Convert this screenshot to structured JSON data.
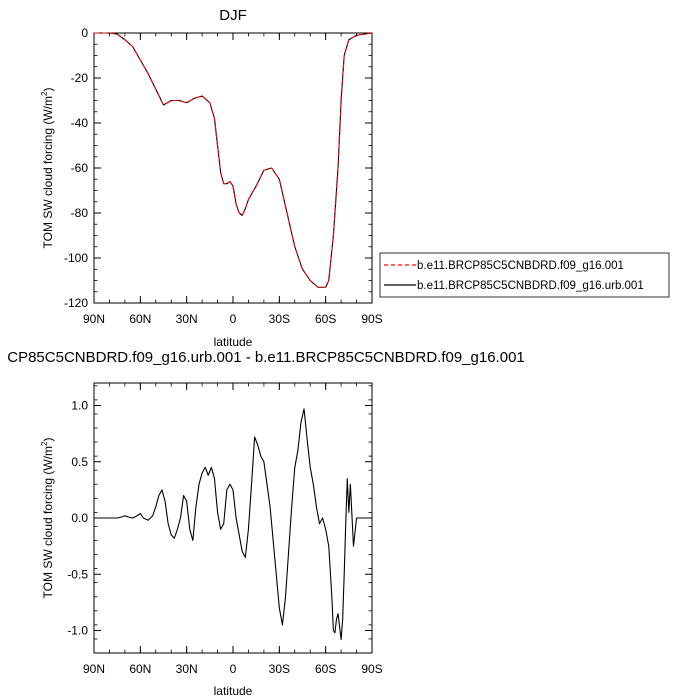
{
  "chart_data": [
    {
      "type": "line",
      "title": "DJF",
      "xlabel": "latitude",
      "ylabel": "TOM SW cloud forcing (W/m",
      "ylabel_sup": "2",
      "ylabel_close": ")",
      "xlim": [
        90,
        -90
      ],
      "ylim": [
        -120,
        0
      ],
      "xticks": [
        90,
        60,
        30,
        0,
        -30,
        -60,
        -90
      ],
      "xticklabels": [
        "90N",
        "60N",
        "30N",
        "0",
        "30S",
        "60S",
        "90S"
      ],
      "yticks": [
        0,
        -20,
        -40,
        -60,
        -80,
        -100,
        -120
      ],
      "yticklabels": [
        "0",
        "-20",
        "-40",
        "-60",
        "-80",
        "-100",
        "-120"
      ],
      "grid": false,
      "legend_placement": "right",
      "x": [
        90,
        80,
        75,
        70,
        65,
        60,
        55,
        50,
        45,
        40,
        35,
        30,
        25,
        20,
        15,
        12,
        10,
        8,
        6,
        4,
        2,
        0,
        -2,
        -4,
        -6,
        -8,
        -10,
        -15,
        -20,
        -25,
        -30,
        -35,
        -40,
        -45,
        -50,
        -55,
        -60,
        -62,
        -65,
        -68,
        -70,
        -72,
        -75,
        -80,
        -85,
        -90
      ],
      "series": [
        {
          "name": "b.e11.BRCP85C5CNBDRD.f09_g16.001",
          "color": "#ff0000",
          "dash": "dashed",
          "values": [
            0,
            0,
            -0.5,
            -3,
            -6,
            -12,
            -18,
            -25,
            -32,
            -30,
            -30,
            -31,
            -29,
            -28,
            -31,
            -38,
            -50,
            -62,
            -67,
            -67,
            -66,
            -68,
            -76,
            -80,
            -81,
            -78,
            -74,
            -68,
            -61,
            -60,
            -65,
            -80,
            -95,
            -105,
            -110,
            -113,
            -113,
            -110,
            -90,
            -60,
            -30,
            -10,
            -3,
            -1,
            -0.5,
            0
          ]
        },
        {
          "name": "b.e11.BRCP85C5CNBDRD.f09_g16.urb.001",
          "color": "#000000",
          "dash": "solid",
          "values": [
            0,
            0,
            -0.5,
            -3,
            -6,
            -12,
            -18,
            -25,
            -32,
            -30,
            -30,
            -31,
            -29,
            -28,
            -31,
            -38,
            -50,
            -62,
            -67,
            -67,
            -66,
            -68,
            -76,
            -80,
            -81,
            -78,
            -74,
            -68,
            -61,
            -60,
            -65,
            -80,
            -95,
            -105,
            -110,
            -113,
            -113,
            -110,
            -90,
            -60,
            -30,
            -10,
            -3,
            -1,
            -0.5,
            0
          ]
        }
      ]
    },
    {
      "type": "line",
      "title": "CP85C5CNBDRD.f09_g16.urb.001 - b.e11.BRCP85C5CNBDRD.f09_g16.001",
      "xlabel": "latitude",
      "ylabel": "TOM SW cloud forcing (W/m",
      "ylabel_sup": "2",
      "ylabel_close": ")",
      "xlim": [
        90,
        -90
      ],
      "ylim": [
        -1.2,
        1.2
      ],
      "xticks": [
        90,
        60,
        30,
        0,
        -30,
        -60,
        -90
      ],
      "xticklabels": [
        "90N",
        "60N",
        "30N",
        "0",
        "30S",
        "60S",
        "90S"
      ],
      "yticks": [
        1.0,
        0.5,
        0.0,
        -0.5,
        -1.0
      ],
      "yticklabels": [
        "1.0",
        "0.5",
        "0.0",
        "-0.5",
        "-1.0"
      ],
      "grid": false,
      "x": [
        90,
        80,
        75,
        72,
        70,
        68,
        65,
        62,
        60,
        58,
        55,
        52,
        50,
        48,
        46,
        44,
        42,
        40,
        38,
        36,
        34,
        32,
        30,
        28,
        26,
        24,
        22,
        20,
        18,
        16,
        14,
        12,
        10,
        8,
        6,
        4,
        2,
        0,
        -2,
        -4,
        -6,
        -8,
        -10,
        -12,
        -14,
        -16,
        -18,
        -20,
        -22,
        -24,
        -26,
        -28,
        -30,
        -32,
        -34,
        -36,
        -38,
        -40,
        -42,
        -44,
        -46,
        -48,
        -50,
        -52,
        -54,
        -56,
        -58,
        -60,
        -62,
        -64,
        -65,
        -66,
        -67,
        -68,
        -70,
        -71,
        -72,
        -73,
        -74,
        -75,
        -76,
        -78,
        -80,
        -85,
        -90
      ],
      "series": [
        {
          "color": "#000000",
          "dash": "solid",
          "values": [
            0,
            0,
            0,
            0.01,
            0.02,
            0.01,
            0,
            0.02,
            0.04,
            0,
            -0.02,
            0.02,
            0.1,
            0.2,
            0.25,
            0.15,
            -0.05,
            -0.15,
            -0.18,
            -0.1,
            0,
            0.2,
            0.15,
            -0.1,
            -0.2,
            0.1,
            0.3,
            0.4,
            0.45,
            0.38,
            0.45,
            0.35,
            0.05,
            -0.1,
            -0.05,
            0.25,
            0.3,
            0.25,
            0,
            -0.15,
            -0.3,
            -0.35,
            -0.1,
            0.3,
            0.72,
            0.65,
            0.55,
            0.5,
            0.3,
            0.1,
            -0.2,
            -0.5,
            -0.8,
            -0.95,
            -0.7,
            -0.3,
            0.1,
            0.45,
            0.6,
            0.85,
            0.97,
            0.7,
            0.45,
            0.3,
            0.1,
            -0.05,
            0,
            -0.1,
            -0.25,
            -0.7,
            -1.0,
            -1.02,
            -0.9,
            -0.85,
            -1.08,
            -0.9,
            -0.5,
            -0.05,
            0.35,
            0.05,
            0.3,
            -0.25,
            0,
            0,
            0
          ]
        }
      ]
    }
  ]
}
